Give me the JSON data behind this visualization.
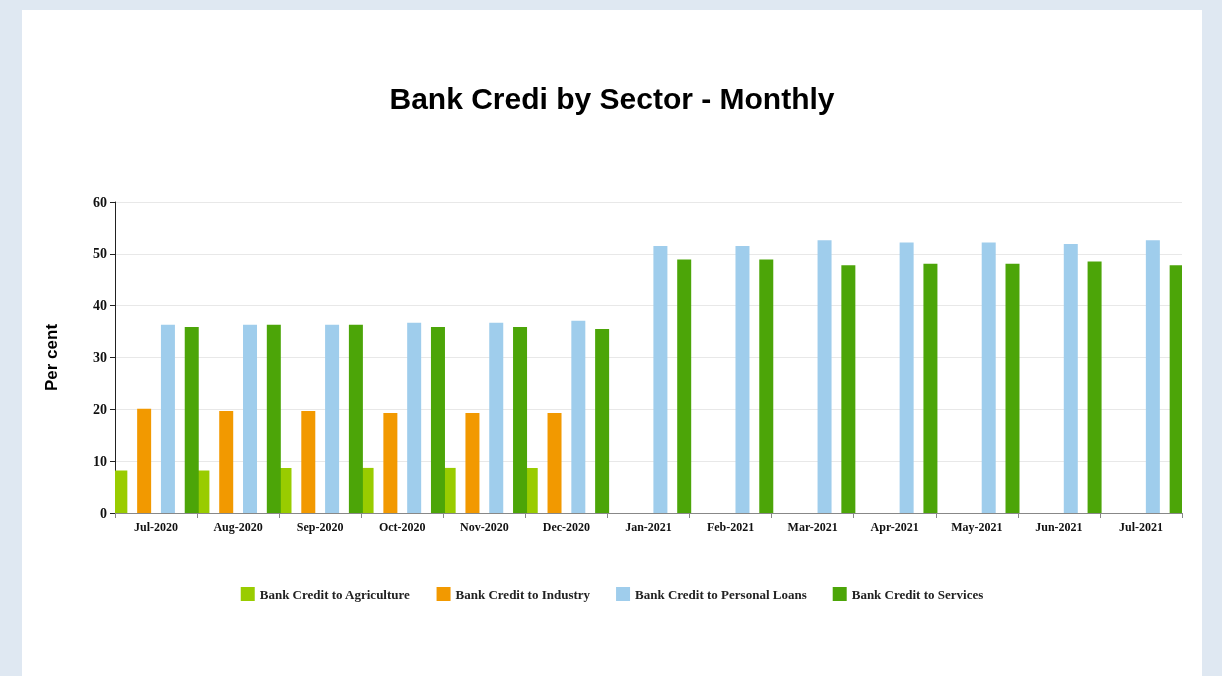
{
  "chart_data": {
    "type": "bar",
    "title": "Bank Credi by Sector - Monthly",
    "ylabel": "Per cent",
    "categories": [
      "Jul-2020",
      "Aug-2020",
      "Sep-2020",
      "Oct-2020",
      "Nov-2020",
      "Dec-2020",
      "Jan-2021",
      "Feb-2021",
      "Mar-2021",
      "Apr-2021",
      "May-2021",
      "Jun-2021",
      "Jul-2021"
    ],
    "series": [
      {
        "name": "Bank Credit to Agriculture",
        "color": "#99cc00",
        "values": [
          8.2,
          8.2,
          8.7,
          8.7,
          8.7,
          8.7,
          null,
          null,
          null,
          null,
          null,
          null,
          null
        ]
      },
      {
        "name": "Bank Credit to Industry",
        "color": "#f29900",
        "values": [
          20.1,
          19.7,
          19.7,
          19.3,
          19.3,
          19.3,
          null,
          null,
          null,
          null,
          null,
          null,
          null
        ]
      },
      {
        "name": "Bank Credit to Personal Loans",
        "color": "#9fcdec",
        "values": [
          36.3,
          36.3,
          36.3,
          36.7,
          36.7,
          37.1,
          51.5,
          51.5,
          52.6,
          52.2,
          52.2,
          51.9,
          52.6
        ]
      },
      {
        "name": "Bank Credit to Services",
        "color": "#4ca508",
        "values": [
          35.9,
          36.3,
          36.3,
          35.9,
          35.9,
          35.5,
          48.9,
          48.9,
          47.8,
          48.1,
          48.1,
          48.5,
          47.8
        ]
      }
    ],
    "ylim": [
      0,
      60
    ],
    "yticks": [
      0,
      10,
      20,
      30,
      40,
      50,
      60
    ],
    "grid": "y",
    "legend": "bottom"
  }
}
